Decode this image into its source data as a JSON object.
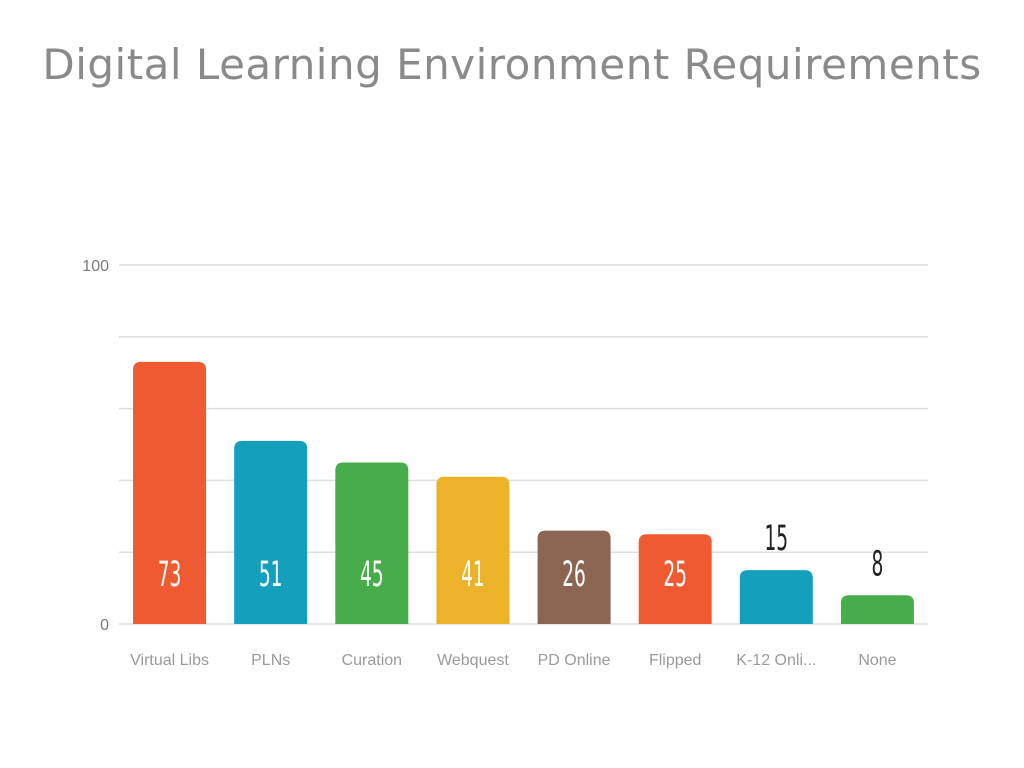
{
  "title": "Digital Learning Environment Requirements",
  "chart_data": {
    "type": "bar",
    "title": "Digital Learning Environment Requirements",
    "categories": [
      "Virtual Libs",
      "PLNs",
      "Curation",
      "Webquest",
      "PD Online",
      "Flipped",
      "K-12 Onli...",
      "None"
    ],
    "values": [
      73,
      51,
      45,
      41,
      26,
      25,
      15,
      8
    ],
    "colors": [
      "#f05a32",
      "#14a0bc",
      "#47ad4a",
      "#ecb229",
      "#8b6551",
      "#f05a32",
      "#14a0bc",
      "#47ad4a"
    ],
    "ylim": [
      0,
      100
    ],
    "yticks": [
      0,
      100
    ],
    "ytick_labels": [
      "0",
      "100"
    ],
    "grid": true,
    "grid_color": "#dedede",
    "xlabel": "",
    "ylabel": ""
  }
}
